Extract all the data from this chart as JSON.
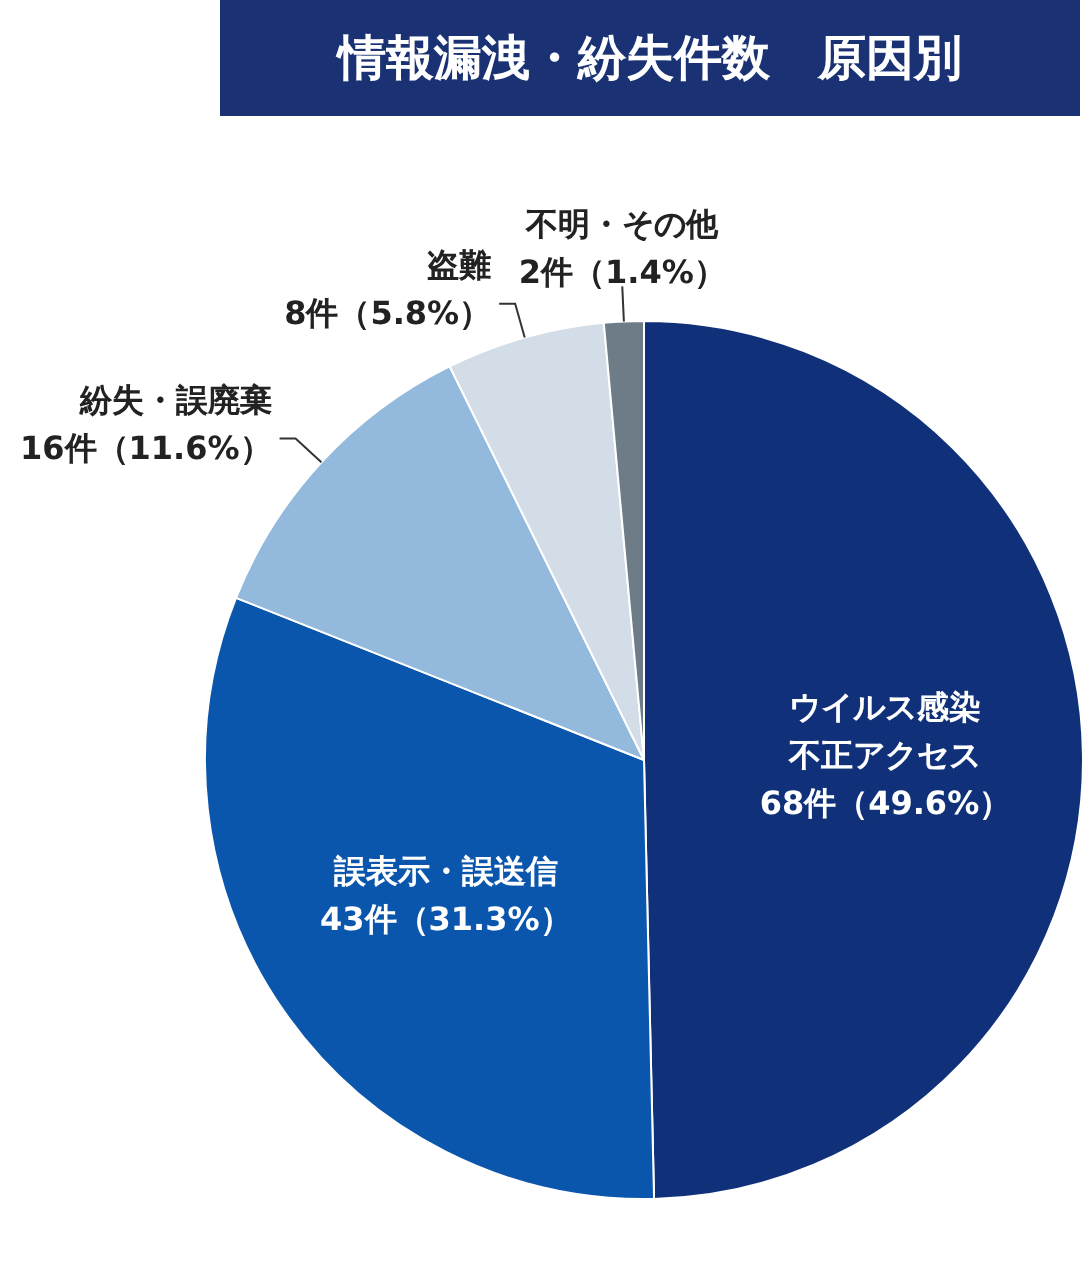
{
  "chart_data": {
    "type": "pie",
    "title": "情報漏洩・紛失件数　原因別",
    "categories": [
      "ウイルス感染不正アクセス",
      "誤表示・誤送信",
      "紛失・誤廃棄",
      "盗難",
      "不明・その他"
    ],
    "values": [
      68,
      43,
      16,
      8,
      2
    ],
    "colors": [
      "#10317a",
      "#0b56ad",
      "#93b9dd",
      "#d3dde7",
      "#6d7c87"
    ],
    "value_labels": [
      "68件（49.6%）",
      "43件（31.3%）",
      "16件（11.6%）",
      "8件（5.8%）",
      "2件（1.4%）"
    ],
    "legend": false
  }
}
